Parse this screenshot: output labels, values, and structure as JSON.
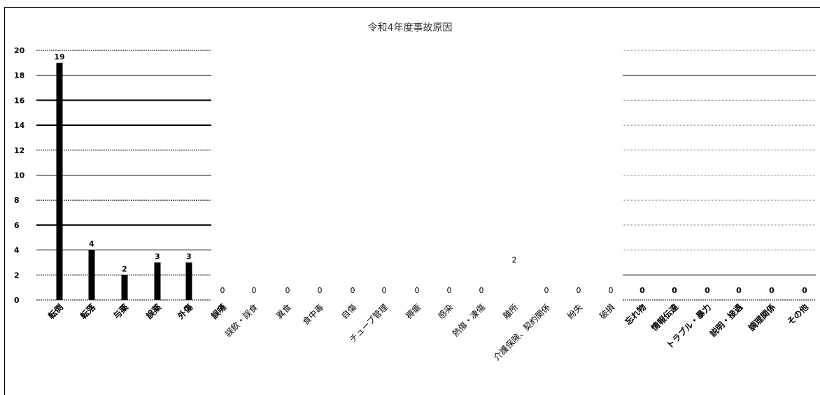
{
  "chart_data": {
    "type": "bar",
    "title": "令和4年度事故原因",
    "xlabel": "",
    "ylabel": "",
    "ylim": [
      0,
      20
    ],
    "yticks": [
      0,
      2,
      4,
      6,
      8,
      10,
      12,
      14,
      16,
      18,
      20
    ],
    "grid": true,
    "legend": "none",
    "categories": [
      "転倒",
      "転落",
      "与薬",
      "誤薬",
      "外傷",
      "誤嚥",
      "誤飲・誤食",
      "異食",
      "食中毒",
      "自傷",
      "チューブ管理",
      "褥瘡",
      "感染",
      "熱傷・凍傷",
      "離所",
      "介護保険、契約関係",
      "紛失",
      "破損",
      "忘れ物",
      "情報伝達",
      "トラブル・暴力",
      "説明・接遇",
      "調理関係",
      "その他"
    ],
    "values": [
      19,
      4,
      2,
      3,
      3,
      0,
      0,
      0,
      0,
      0,
      0,
      0,
      0,
      0,
      2,
      0,
      0,
      0,
      0,
      0,
      0,
      0,
      0,
      0
    ],
    "data_labels": [
      "19",
      "4",
      "2",
      "3",
      "3",
      "0",
      "0",
      "0",
      "0",
      "0",
      "0",
      "0",
      "0",
      "0",
      "2",
      "0",
      "0",
      "0",
      "0",
      "0",
      "0",
      "0",
      "0",
      "0"
    ],
    "bar_color": "#000000"
  }
}
